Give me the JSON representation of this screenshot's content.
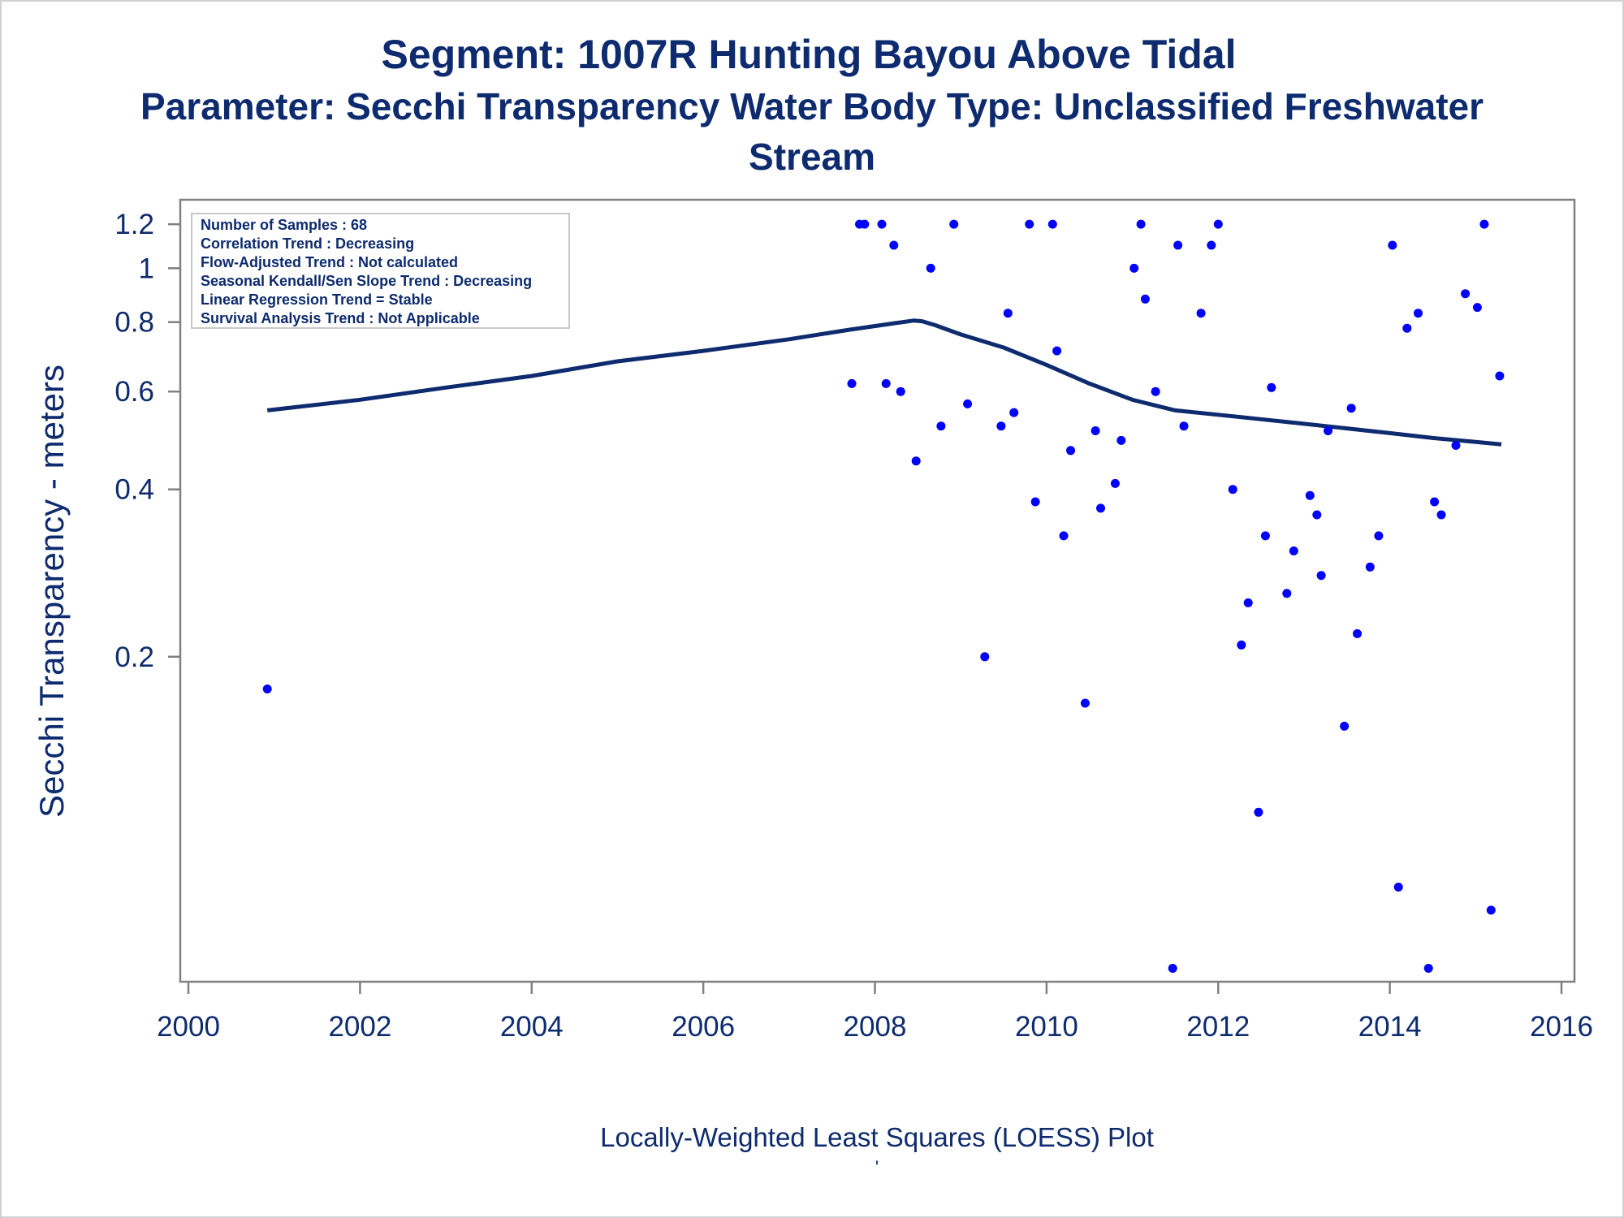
{
  "titles": {
    "line1": "Segment: 1007R  Hunting Bayou Above Tidal",
    "line2": "Parameter: Secchi Transparency   Water Body Type: Unclassified Freshwater",
    "line3": "Stream"
  },
  "inset": {
    "lines": [
      "Number of Samples : 68",
      "Correlation Trend : Decreasing",
      "Flow-Adjusted Trend : Not calculated",
      "Seasonal Kendall/Sen Slope Trend : Decreasing",
      "Linear Regression Trend = Stable",
      "Survival Analysis Trend : Not Applicable"
    ]
  },
  "footnote": "Locally-Weighted Least Squares (LOESS) Plot",
  "footnote_mark": "'",
  "colors": {
    "text": "#0d2b6e",
    "points": "#0000ff",
    "loess": "#0d2b6e",
    "axis": "#808080"
  },
  "chart_data": {
    "type": "scatter",
    "title": "Segment: 1007R  Hunting Bayou Above Tidal",
    "subtitle": "Parameter: Secchi Transparency   Water Body Type: Unclassified Freshwater Stream",
    "xlabel": "",
    "ylabel": "Secchi Transparency - meters",
    "y_scale": "log",
    "xlim": [
      2000,
      2016
    ],
    "ylim": [
      0.054,
      1.25
    ],
    "x_ticks": [
      2000,
      2002,
      2004,
      2006,
      2008,
      2010,
      2012,
      2014,
      2016
    ],
    "y_ticks": [
      0.2,
      0.4,
      0.6,
      0.8,
      1,
      1.2
    ],
    "grid": false,
    "series": [
      {
        "type": "scatter",
        "x": [
          2000.92,
          2007.73,
          2007.82,
          2007.88,
          2008.08,
          2008.13,
          2008.22,
          2008.3,
          2008.48,
          2008.65,
          2008.77,
          2008.92,
          2009.08,
          2009.28,
          2009.47,
          2009.55,
          2009.62,
          2009.8,
          2009.87,
          2010.07,
          2010.12,
          2010.2,
          2010.28,
          2010.45,
          2010.57,
          2010.63,
          2010.8,
          2010.87,
          2011.02,
          2011.1,
          2011.15,
          2011.27,
          2011.47,
          2011.53,
          2011.6,
          2011.8,
          2011.92,
          2012.0,
          2012.17,
          2012.27,
          2012.35,
          2012.47,
          2012.55,
          2012.62,
          2012.8,
          2012.88,
          2013.07,
          2013.15,
          2013.2,
          2013.28,
          2013.47,
          2013.55,
          2013.62,
          2013.77,
          2013.87,
          2014.03,
          2014.1,
          2014.2,
          2014.33,
          2014.45,
          2014.52,
          2014.6,
          2014.77,
          2014.88,
          2015.02,
          2015.1,
          2015.18,
          2015.28
        ],
        "y": [
          0.175,
          0.62,
          1.2,
          1.2,
          1.2,
          0.62,
          1.1,
          0.6,
          0.45,
          1.0,
          0.52,
          1.2,
          0.57,
          0.2,
          0.52,
          0.83,
          0.55,
          1.2,
          0.38,
          1.2,
          0.71,
          0.33,
          0.47,
          0.165,
          0.51,
          0.37,
          0.41,
          0.49,
          1.0,
          1.2,
          0.88,
          0.6,
          0.055,
          1.1,
          0.52,
          0.83,
          1.1,
          1.2,
          0.4,
          0.21,
          0.25,
          0.105,
          0.33,
          0.61,
          0.26,
          0.31,
          0.39,
          0.36,
          0.28,
          0.51,
          0.15,
          0.56,
          0.22,
          0.29,
          0.33,
          1.1,
          0.077,
          0.78,
          0.83,
          0.055,
          0.38,
          0.36,
          0.48,
          0.9,
          0.85,
          1.2,
          0.07,
          0.64
        ]
      },
      {
        "type": "line",
        "name": "",
        "x": [
          2000.92,
          2002.0,
          2003.0,
          2004.0,
          2005.0,
          2006.0,
          2007.0,
          2007.7,
          2008.2,
          2008.45,
          2008.55,
          2008.7,
          2009.0,
          2009.5,
          2010.0,
          2010.5,
          2011.0,
          2011.5,
          2012.0,
          2012.5,
          2013.0,
          2013.5,
          2014.0,
          2014.5,
          2015.0,
          2015.3
        ],
        "y": [
          0.555,
          0.58,
          0.61,
          0.64,
          0.68,
          0.71,
          0.745,
          0.775,
          0.795,
          0.805,
          0.803,
          0.79,
          0.76,
          0.72,
          0.67,
          0.62,
          0.58,
          0.555,
          0.545,
          0.535,
          0.525,
          0.515,
          0.505,
          0.495,
          0.487,
          0.482
        ]
      }
    ]
  }
}
